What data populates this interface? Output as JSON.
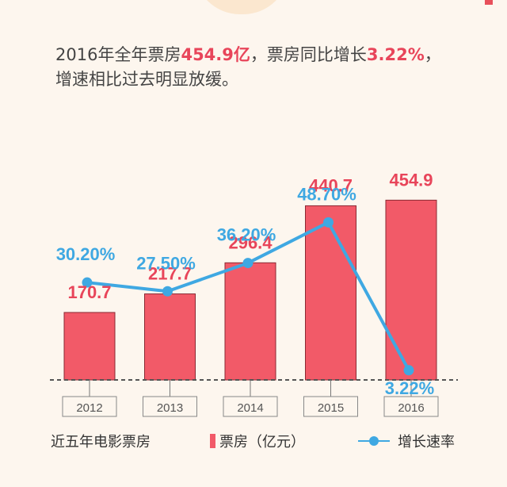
{
  "headline": {
    "line1_part1": "2016年全年票房",
    "line1_hl1": "454.9亿",
    "line1_part2": "，票房同比增长",
    "line1_hl2": "3.22%",
    "line1_part3": "，",
    "line2": "增速相比过去明显放缓。"
  },
  "colors": {
    "bar": "#f25a68",
    "bar_label": "#e8455a",
    "line": "#3fa8e2"
  },
  "chart_data": {
    "type": "bar",
    "categories": [
      "2012",
      "2013",
      "2014",
      "2015",
      "2016"
    ],
    "series": [
      {
        "name": "票房（亿元）",
        "type": "bar",
        "values": [
          170.7,
          217.7,
          296.4,
          440.7,
          454.9
        ],
        "labels": [
          "170.7",
          "217.7",
          "296.4",
          "440.7",
          "454.9"
        ]
      },
      {
        "name": "增长速率",
        "type": "line",
        "values": [
          30.2,
          27.5,
          36.2,
          48.7,
          3.22
        ],
        "labels": [
          "30.20%",
          "27.50%",
          "36.20%",
          "48.70%",
          "3.22%"
        ]
      }
    ],
    "title": "近五年电影票房",
    "xlabel": "",
    "ylabel": "",
    "ylim": [
      0,
      560
    ],
    "y2lim": [
      0,
      100
    ],
    "grid": false,
    "legend": "bottom"
  },
  "legend": {
    "title": "近五年电影票房",
    "bar_label": "票房（亿元）",
    "line_label": "增长速率"
  }
}
